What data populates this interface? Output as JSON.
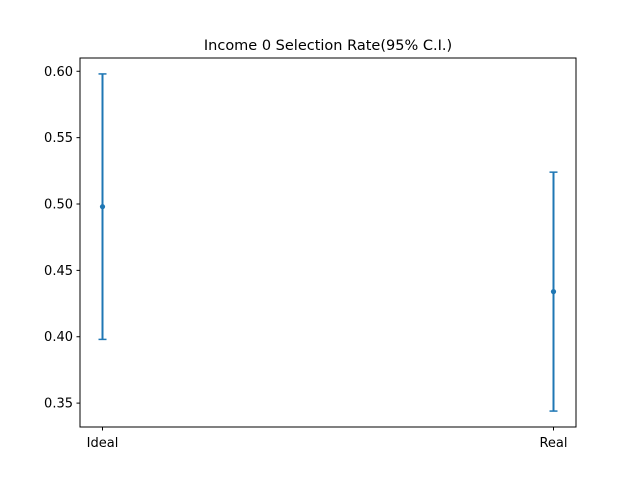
{
  "chart_data": {
    "type": "errorbar",
    "title": "Income 0 Selection Rate(95% C.I.)",
    "xlabel": "",
    "ylabel": "",
    "categories": [
      "Ideal",
      "Real"
    ],
    "points": [
      {
        "category": "Ideal",
        "value": 0.498,
        "lower": 0.398,
        "upper": 0.598
      },
      {
        "category": "Real",
        "value": 0.434,
        "lower": 0.344,
        "upper": 0.524
      }
    ],
    "ylim": [
      0.332,
      0.61
    ],
    "yticks": [
      "0.35",
      "0.40",
      "0.45",
      "0.50",
      "0.55",
      "0.60"
    ],
    "grid": false,
    "color": "#1f77b4"
  }
}
